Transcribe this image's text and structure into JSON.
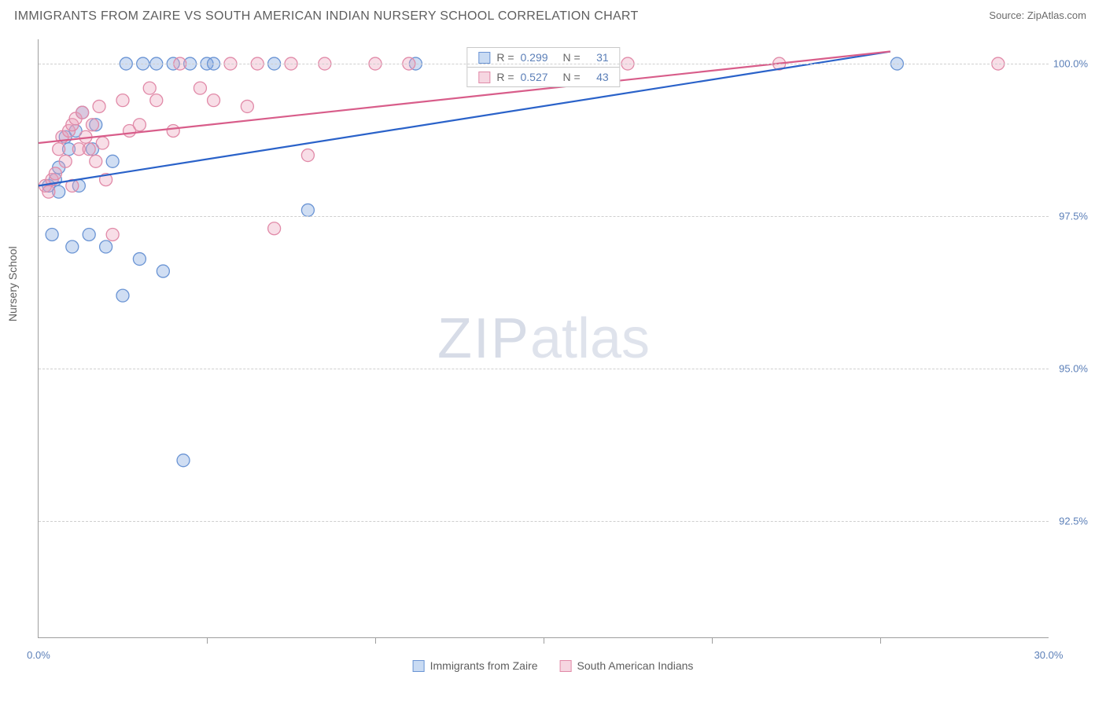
{
  "title": "IMMIGRANTS FROM ZAIRE VS SOUTH AMERICAN INDIAN NURSERY SCHOOL CORRELATION CHART",
  "source_label": "Source:",
  "source_name": "ZipAtlas.com",
  "ylabel": "Nursery School",
  "watermark_a": "ZIP",
  "watermark_b": "atlas",
  "chart": {
    "type": "scatter",
    "xlim": [
      0,
      30
    ],
    "ylim": [
      90.6,
      100.4
    ],
    "xticks": [
      0,
      30
    ],
    "xticks_minor": [
      5,
      10,
      15,
      20,
      25
    ],
    "yticks": [
      92.5,
      95.0,
      97.5,
      100.0
    ],
    "ytick_labels": [
      "92.5%",
      "95.0%",
      "97.5%",
      "100.0%"
    ],
    "xtick_labels": [
      "0.0%",
      "30.0%"
    ],
    "grid_color": "#cfcfcf",
    "axis_color": "#9e9e9e",
    "background_color": "#ffffff",
    "marker_radius": 8,
    "marker_stroke_width": 1.3,
    "line_width": 2.2,
    "series": [
      {
        "name": "Immigrants from Zaire",
        "color_fill": "rgba(120,160,220,0.35)",
        "color_stroke": "#6a94d4",
        "legend_fill": "#c9dbf3",
        "legend_stroke": "#6a94d4",
        "R": "0.299",
        "N": "31",
        "trend": {
          "x1": 0,
          "y1": 98.0,
          "x2": 25.3,
          "y2": 100.2,
          "color": "#2a62c9"
        },
        "points": [
          [
            0.3,
            98.0
          ],
          [
            0.4,
            97.2
          ],
          [
            0.5,
            98.1
          ],
          [
            0.6,
            97.9
          ],
          [
            0.6,
            98.3
          ],
          [
            0.8,
            98.8
          ],
          [
            0.9,
            98.6
          ],
          [
            1.0,
            97.0
          ],
          [
            1.1,
            98.9
          ],
          [
            1.2,
            98.0
          ],
          [
            1.3,
            99.2
          ],
          [
            1.5,
            97.2
          ],
          [
            1.6,
            98.6
          ],
          [
            1.7,
            99.0
          ],
          [
            2.0,
            97.0
          ],
          [
            2.2,
            98.4
          ],
          [
            2.5,
            96.2
          ],
          [
            2.6,
            100.0
          ],
          [
            3.0,
            96.8
          ],
          [
            3.1,
            100.0
          ],
          [
            3.5,
            100.0
          ],
          [
            3.7,
            96.6
          ],
          [
            4.0,
            100.0
          ],
          [
            4.3,
            93.5
          ],
          [
            4.5,
            100.0
          ],
          [
            5.0,
            100.0
          ],
          [
            5.2,
            100.0
          ],
          [
            7.0,
            100.0
          ],
          [
            8.0,
            97.6
          ],
          [
            11.2,
            100.0
          ],
          [
            25.5,
            100.0
          ]
        ]
      },
      {
        "name": "South American Indians",
        "color_fill": "rgba(235,160,185,0.35)",
        "color_stroke": "#e18aa8",
        "legend_fill": "#f6d6e1",
        "legend_stroke": "#e18aa8",
        "R": "0.527",
        "N": "43",
        "trend": {
          "x1": 0,
          "y1": 98.7,
          "x2": 25.3,
          "y2": 100.2,
          "color": "#d85d8a"
        },
        "points": [
          [
            0.2,
            98.0
          ],
          [
            0.3,
            97.9
          ],
          [
            0.4,
            98.1
          ],
          [
            0.5,
            98.2
          ],
          [
            0.6,
            98.6
          ],
          [
            0.7,
            98.8
          ],
          [
            0.8,
            98.4
          ],
          [
            0.9,
            98.9
          ],
          [
            1.0,
            99.0
          ],
          [
            1.0,
            98.0
          ],
          [
            1.1,
            99.1
          ],
          [
            1.2,
            98.6
          ],
          [
            1.3,
            99.2
          ],
          [
            1.4,
            98.8
          ],
          [
            1.5,
            98.6
          ],
          [
            1.6,
            99.0
          ],
          [
            1.7,
            98.4
          ],
          [
            1.8,
            99.3
          ],
          [
            1.9,
            98.7
          ],
          [
            2.0,
            98.1
          ],
          [
            2.2,
            97.2
          ],
          [
            2.5,
            99.4
          ],
          [
            2.7,
            98.9
          ],
          [
            3.0,
            99.0
          ],
          [
            3.3,
            99.6
          ],
          [
            3.5,
            99.4
          ],
          [
            4.0,
            98.9
          ],
          [
            4.2,
            100.0
          ],
          [
            4.8,
            99.6
          ],
          [
            5.2,
            99.4
          ],
          [
            5.7,
            100.0
          ],
          [
            6.2,
            99.3
          ],
          [
            6.5,
            100.0
          ],
          [
            7.0,
            97.3
          ],
          [
            7.5,
            100.0
          ],
          [
            8.0,
            98.5
          ],
          [
            8.5,
            100.0
          ],
          [
            10.0,
            100.0
          ],
          [
            11.0,
            100.0
          ],
          [
            13.5,
            100.0
          ],
          [
            17.5,
            100.0
          ],
          [
            22.0,
            100.0
          ],
          [
            28.5,
            100.0
          ]
        ]
      }
    ]
  },
  "legend_top": {
    "r_label": "R =",
    "n_label": "N ="
  },
  "colors": {
    "title": "#5e5e5e",
    "tick_label": "#5b7fb8"
  }
}
